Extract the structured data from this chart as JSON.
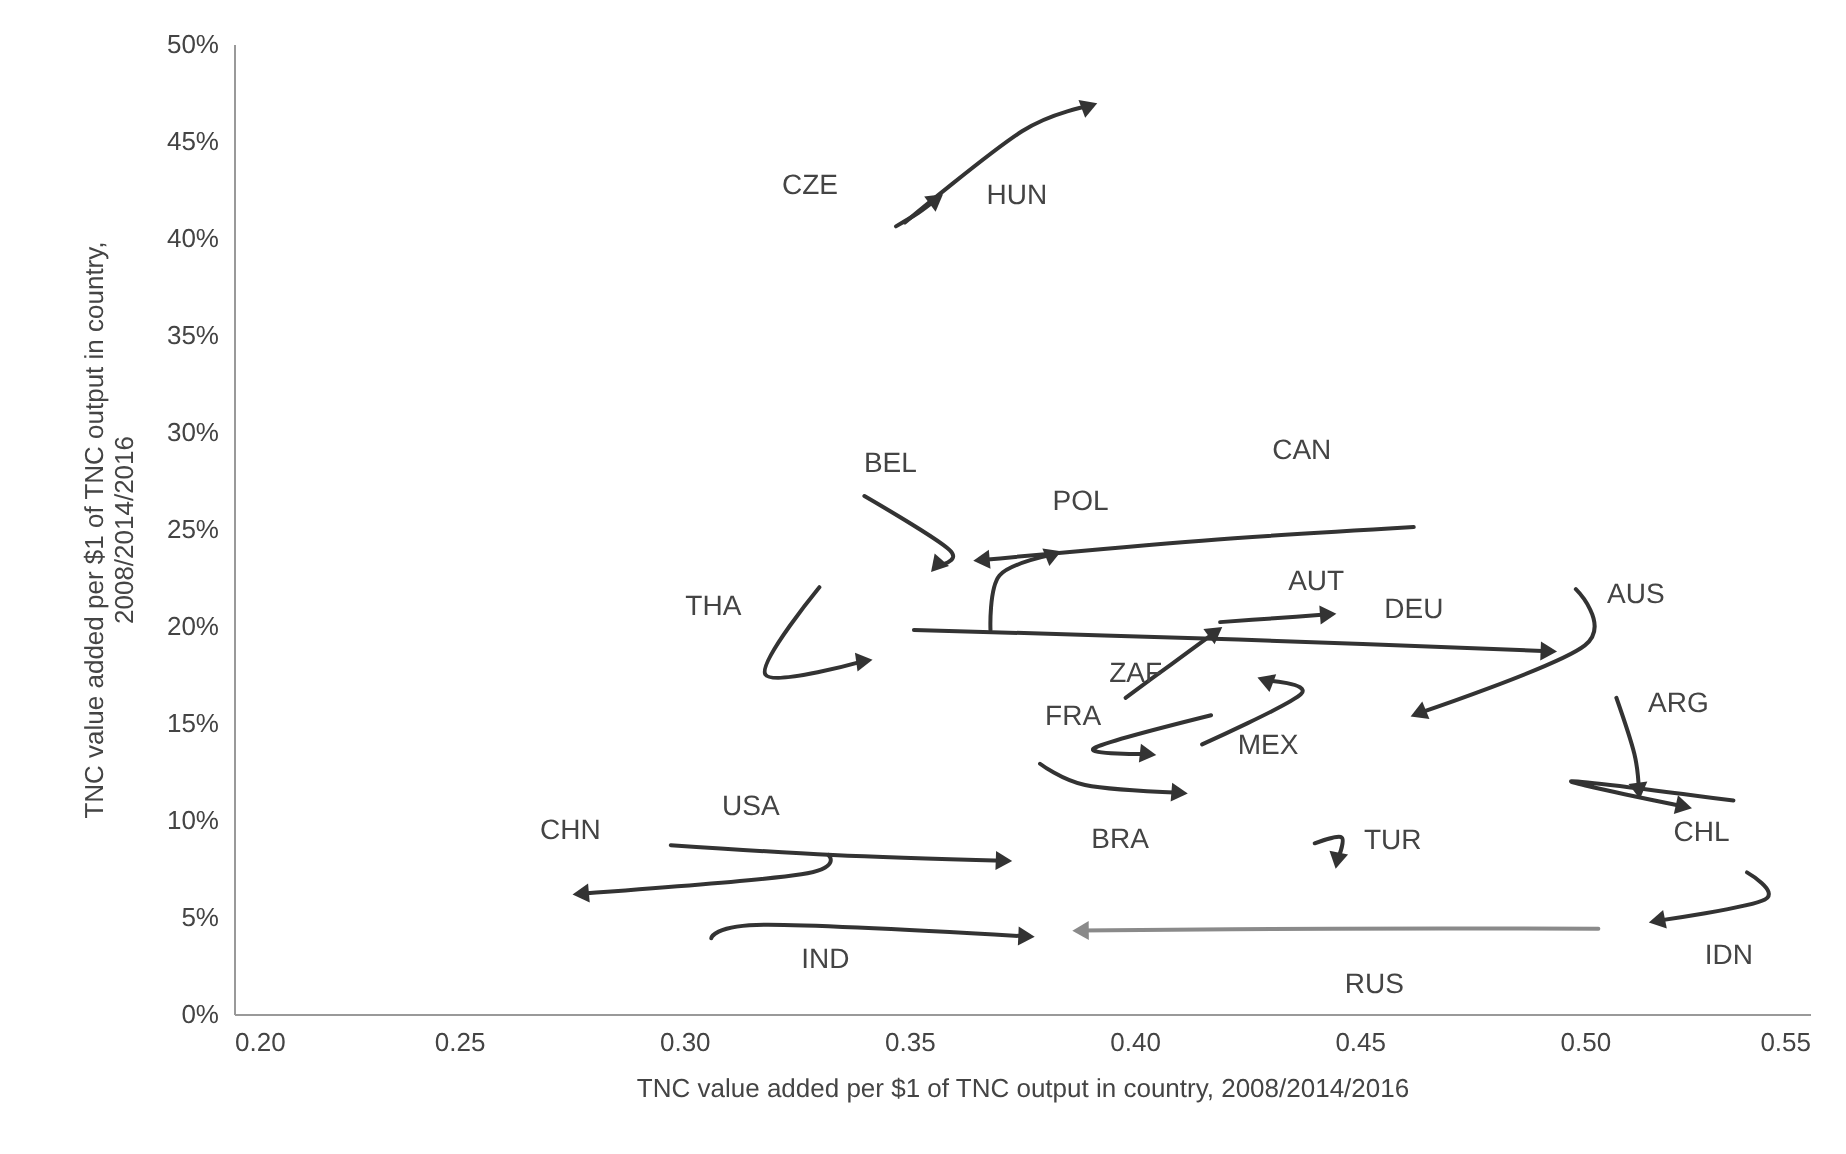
{
  "chart_data": {
    "type": "line",
    "xlabel": "TNC value added per $1 of TNC output in country, 2008/2014/2016",
    "ylabel": "TNC value added per $1 of TNC output in country, 2008/2014/2016",
    "xlim": [
      0.2,
      0.55
    ],
    "xticks": [
      {
        "value": 0.2,
        "label": "0.20"
      },
      {
        "value": 0.25,
        "label": "0.25"
      },
      {
        "value": 0.3,
        "label": "0.30"
      },
      {
        "value": 0.35,
        "label": "0.35"
      },
      {
        "value": 0.4,
        "label": "0.40"
      },
      {
        "value": 0.45,
        "label": "0.45"
      },
      {
        "value": 0.5,
        "label": "0.50"
      },
      {
        "value": 0.55,
        "label": "0.55"
      }
    ],
    "ylim": [
      0,
      50
    ],
    "yticks": [
      {
        "value": 0,
        "label": "0%"
      },
      {
        "value": 5,
        "label": "5%"
      },
      {
        "value": 10,
        "label": "10%"
      },
      {
        "value": 15,
        "label": "15%"
      },
      {
        "value": 20,
        "label": "20%"
      },
      {
        "value": 25,
        "label": "25%"
      },
      {
        "value": 30,
        "label": "30%"
      },
      {
        "value": 35,
        "label": "35%"
      },
      {
        "value": 40,
        "label": "40%"
      },
      {
        "value": 45,
        "label": "45%"
      },
      {
        "value": 50,
        "label": "50%"
      }
    ],
    "grid": false,
    "series": [
      {
        "name": "CZE",
        "color": "#333333",
        "x": [
          0.347,
          0.352,
          0.356
        ],
        "values": [
          40.6,
          41.3,
          42.0
        ]
      },
      {
        "name": "HUN",
        "color": "#333333",
        "x": [
          0.349,
          0.375,
          0.39
        ],
        "values": [
          40.8,
          45.5,
          46.8
        ]
      },
      {
        "name": "BEL",
        "color": "#333333",
        "x": [
          0.34,
          0.359,
          0.356
        ],
        "values": [
          26.7,
          23.9,
          23.1
        ]
      },
      {
        "name": "CAN",
        "color": "#333333",
        "x": [
          0.462,
          0.415,
          0.366
        ],
        "values": [
          25.1,
          24.4,
          23.4
        ]
      },
      {
        "name": "POL",
        "color": "#333333",
        "x": [
          0.368,
          0.37,
          0.382
        ],
        "values": [
          19.8,
          22.6,
          23.7
        ]
      },
      {
        "name": "THA",
        "color": "#333333",
        "x": [
          0.33,
          0.318,
          0.34
        ],
        "values": [
          22.0,
          17.5,
          18.2
        ]
      },
      {
        "name": "AUT",
        "color": "#333333",
        "x": [
          0.419,
          0.431,
          0.443
        ],
        "values": [
          20.2,
          20.4,
          20.6
        ]
      },
      {
        "name": "DEU",
        "color": "#333333",
        "x": [
          0.351,
          0.423,
          0.492
        ],
        "values": [
          19.8,
          19.3,
          18.7
        ]
      },
      {
        "name": "AUS",
        "color": "#333333",
        "x": [
          0.498,
          0.5,
          0.463
        ],
        "values": [
          21.9,
          19.0,
          15.5
        ]
      },
      {
        "name": "ZAF",
        "color": "#333333",
        "x": [
          0.398,
          0.408,
          0.418
        ],
        "values": [
          16.3,
          18.0,
          19.7
        ]
      },
      {
        "name": "FRA",
        "color": "#333333",
        "x": [
          0.417,
          0.391,
          0.403
        ],
        "values": [
          15.4,
          13.7,
          13.4
        ]
      },
      {
        "name": "MEX",
        "color": "#333333",
        "x": [
          0.415,
          0.437,
          0.429
        ],
        "values": [
          13.9,
          16.5,
          17.2
        ]
      },
      {
        "name": "ARG",
        "color": "#333333",
        "x": [
          0.507,
          0.511,
          0.512
        ],
        "values": [
          16.3,
          13.4,
          11.5
        ]
      },
      {
        "name": "BRA",
        "color": "#333333",
        "x": [
          0.379,
          0.389,
          0.41
        ],
        "values": [
          12.9,
          11.8,
          11.4
        ]
      },
      {
        "name": "TUR",
        "color": "#333333",
        "x": [
          0.44,
          0.446,
          0.445
        ],
        "values": [
          8.8,
          9.1,
          7.9
        ]
      },
      {
        "name": "CHL",
        "color": "#333333",
        "x": [
          0.533,
          0.497,
          0.522
        ],
        "values": [
          11.0,
          12.0,
          10.7
        ]
      },
      {
        "name": "USA",
        "color": "#333333",
        "x": [
          0.297,
          0.333,
          0.371
        ],
        "values": [
          8.7,
          8.2,
          7.9
        ]
      },
      {
        "name": "CHN",
        "color": "#333333",
        "x": [
          0.332,
          0.326,
          0.277
        ],
        "values": [
          8.2,
          7.2,
          6.2
        ]
      },
      {
        "name": "IND",
        "color": "#333333",
        "x": [
          0.306,
          0.318,
          0.376
        ],
        "values": [
          3.9,
          4.6,
          4.0
        ]
      },
      {
        "name": "RUS",
        "color": "#8a8a8a",
        "x": [
          0.503,
          0.444,
          0.388
        ],
        "values": [
          4.4,
          4.4,
          4.3
        ]
      },
      {
        "name": "IDN",
        "color": "#333333",
        "x": [
          0.536,
          0.54,
          0.516
        ],
        "values": [
          7.3,
          5.9,
          4.8
        ]
      }
    ]
  }
}
